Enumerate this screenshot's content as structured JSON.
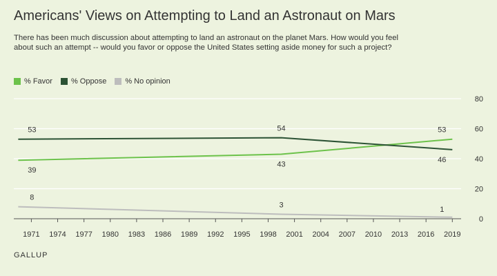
{
  "title": "Americans' Views on Attempting to Land an Astronaut on Mars",
  "subtitle": "There has been much discussion about attempting to land an astronaut on the planet Mars. How would you feel about such an attempt -- would you favor or oppose the United States setting aside money for such a project?",
  "source": "GALLUP",
  "chart_data": {
    "type": "line",
    "title": "Americans' Views on Attempting to Land an Astronaut on Mars",
    "xlabel": "",
    "ylabel": "",
    "xlim": [
      1969,
      2020
    ],
    "ylim": [
      0,
      80
    ],
    "x_ticks": [
      "1971",
      "1974",
      "1977",
      "1980",
      "1983",
      "1986",
      "1989",
      "1992",
      "1995",
      "1998",
      "2001",
      "2004",
      "2007",
      "2010",
      "2013",
      "2016",
      "2019"
    ],
    "y_ticks": [
      "0",
      "20",
      "40",
      "60",
      "80"
    ],
    "grid": true,
    "legend_position": "top-left",
    "series": [
      {
        "name": "% Favor",
        "color": "#6cc24a",
        "points": [
          {
            "x": 1969.5,
            "y": 39
          },
          {
            "x": 1999.5,
            "y": 43
          },
          {
            "x": 2019,
            "y": 53
          }
        ],
        "labels": [
          "39",
          "43",
          "53"
        ]
      },
      {
        "name": "% Oppose",
        "color": "#2b5234",
        "points": [
          {
            "x": 1969.5,
            "y": 53
          },
          {
            "x": 1999.5,
            "y": 54
          },
          {
            "x": 2019,
            "y": 46
          }
        ],
        "labels": [
          "53",
          "54",
          "46"
        ]
      },
      {
        "name": "% No opinion",
        "color": "#bdbdbd",
        "points": [
          {
            "x": 1969.5,
            "y": 8
          },
          {
            "x": 1999.5,
            "y": 3
          },
          {
            "x": 2019,
            "y": 1
          }
        ],
        "labels": [
          "8",
          "3",
          "1"
        ]
      }
    ]
  }
}
